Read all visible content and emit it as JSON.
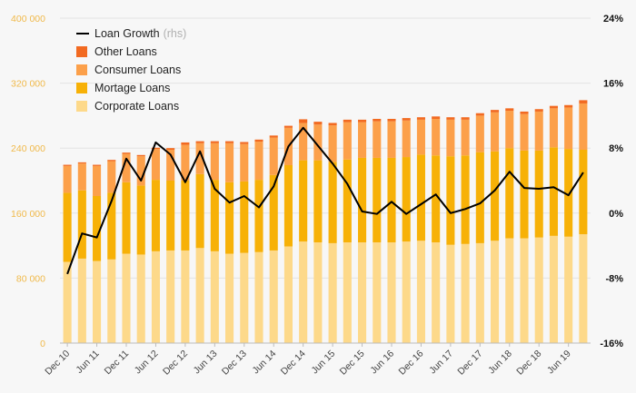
{
  "chart_data": {
    "type": "bar",
    "stacked": true,
    "categories": [
      "Dec 10",
      "Mar 11",
      "Jun 11",
      "Sep 11",
      "Dec 11",
      "Mar 12",
      "Jun 12",
      "Sep 12",
      "Dec 12",
      "Mar 13",
      "Jun 13",
      "Sep 13",
      "Dec 13",
      "Mar 14",
      "Jun 14",
      "Sep 14",
      "Dec 14",
      "Mar 15",
      "Jun 15",
      "Sep 15",
      "Dec 15",
      "Mar 16",
      "Jun 16",
      "Sep 16",
      "Dec 16",
      "Mar 17",
      "Jun 17",
      "Sep 17",
      "Dec 17",
      "Mar 18",
      "Jun 18",
      "Sep 18",
      "Dec 18",
      "Mar 19",
      "Jun 19",
      "Sep 19"
    ],
    "x_tick_labels": [
      "Dec 10",
      "Jun 11",
      "Dec 11",
      "Jun 12",
      "Dec 12",
      "Jun 13",
      "Dec 13",
      "Jun 14",
      "Dec 14",
      "Jun 15",
      "Dec 15",
      "Jun 16",
      "Dec 16",
      "Jun 17",
      "Dec 17",
      "Jun 18",
      "Dec 18",
      "Jun 19"
    ],
    "series": [
      {
        "name": "Corporate Loans",
        "color": "#fdd98a",
        "values": [
          100000,
          104000,
          101000,
          103000,
          110000,
          109000,
          113000,
          114000,
          114000,
          117000,
          113000,
          110000,
          111000,
          112000,
          114000,
          119000,
          125000,
          124000,
          123000,
          124000,
          124000,
          124000,
          124000,
          125000,
          126000,
          124000,
          121000,
          122000,
          123000,
          126000,
          129000,
          129000,
          130000,
          132000,
          131000,
          134000
        ]
      },
      {
        "name": "Mortage Loans",
        "color": "#f7b107",
        "values": [
          85000,
          84000,
          80000,
          82000,
          88000,
          85000,
          88000,
          86000,
          86000,
          91000,
          88000,
          88000,
          88000,
          89000,
          93000,
          100000,
          100000,
          101000,
          100000,
          102000,
          104000,
          104000,
          104000,
          104000,
          106000,
          107000,
          109000,
          109000,
          112000,
          110000,
          111000,
          108000,
          107000,
          109000,
          108000,
          104000
        ]
      },
      {
        "name": "Consumer Loans",
        "color": "#fca04a",
        "values": [
          33000,
          33000,
          37000,
          39000,
          35000,
          36000,
          38000,
          38000,
          44000,
          38000,
          45000,
          48000,
          46000,
          47000,
          46000,
          46000,
          46000,
          44000,
          45000,
          46000,
          44000,
          45000,
          45000,
          45000,
          43000,
          45000,
          45000,
          44000,
          45000,
          48000,
          46000,
          45000,
          48000,
          48000,
          51000,
          57000
        ]
      },
      {
        "name": "Other Loans",
        "color": "#f26a21",
        "values": [
          1500,
          1500,
          1500,
          1500,
          1500,
          1500,
          1500,
          2000,
          3000,
          2500,
          2500,
          2500,
          2500,
          2500,
          2500,
          2500,
          4500,
          3500,
          3000,
          3000,
          3000,
          3000,
          3000,
          3000,
          3000,
          3000,
          3000,
          3000,
          3000,
          3000,
          3000,
          3000,
          3000,
          3000,
          3000,
          4000
        ]
      },
      {
        "name": "Loan Growth",
        "axis": "right",
        "type": "line",
        "color": "#000000",
        "values": [
          -7.5,
          -2.5,
          -3,
          1.5,
          6.7,
          4,
          8.7,
          7.2,
          3.8,
          7.6,
          3,
          1.3,
          2.1,
          0.7,
          3.3,
          8.2,
          10.5,
          8.3,
          6.1,
          3.6,
          0.2,
          -0.1,
          1.4,
          -0.1,
          1.1,
          2.3,
          0,
          0.5,
          1.2,
          2.8,
          5.1,
          3.1,
          3,
          3.2,
          2.2,
          5
        ]
      }
    ],
    "y_left": {
      "min": 0,
      "max": 400000,
      "ticks": [
        "0",
        "80 000",
        "160 000",
        "240 000",
        "320 000",
        "400 000"
      ],
      "tick_values": [
        0,
        80000,
        160000,
        240000,
        320000,
        400000
      ]
    },
    "y_right": {
      "min": -16,
      "max": 24,
      "ticks": [
        "-16%",
        "-8%",
        "0%",
        "8%",
        "16%",
        "24%"
      ],
      "tick_values": [
        -16,
        -8,
        0,
        8,
        16,
        24
      ]
    },
    "grid": true,
    "legend_position": "top-left"
  },
  "legend": [
    {
      "label": "Loan Growth",
      "note": "(rhs)",
      "kind": "line",
      "color": "#000000"
    },
    {
      "label": "Other Loans",
      "kind": "box",
      "color": "#f26a21"
    },
    {
      "label": "Consumer Loans",
      "kind": "box",
      "color": "#fca04a"
    },
    {
      "label": "Mortage Loans",
      "kind": "box",
      "color": "#f7b107"
    },
    {
      "label": "Corporate Loans",
      "kind": "box",
      "color": "#fdd98a"
    }
  ]
}
